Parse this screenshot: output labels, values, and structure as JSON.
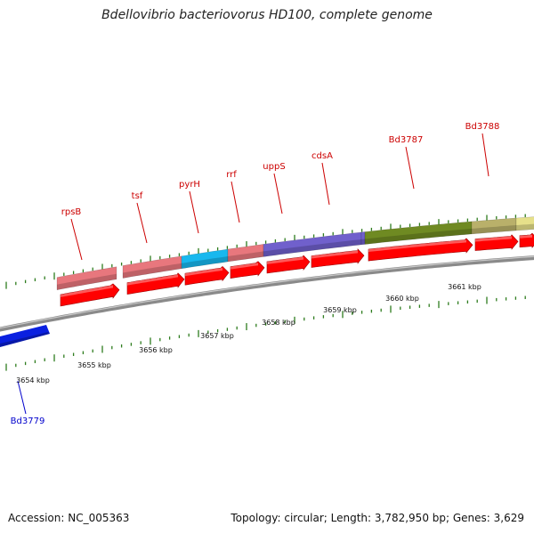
{
  "map": {
    "title": "Bdellovibrio bacteriovorus HD100, complete genome",
    "accession": "Accession: NC_005363",
    "summary": "Topology: circular; Length: 3,782,950 bp; Genes: 3,629"
  },
  "colors": {
    "backbone": "#7a7a7a",
    "cds_arrow": "#ff0000",
    "tick": "#2e7d1e",
    "label_red": "#cc0000",
    "label_blue": "#0000cc"
  },
  "genes": [
    {
      "name": "rpsB",
      "color": "#e8777d",
      "label_color": "#cc0000"
    },
    {
      "name": "tsf",
      "color": "#e8777d",
      "label_color": "#cc0000"
    },
    {
      "name": "pyrH",
      "color": "#18b8ee",
      "label_color": "#cc0000"
    },
    {
      "name": "rrf",
      "color": "#e8777d",
      "label_color": "#cc0000"
    },
    {
      "name": "uppS",
      "color": "#7060cc",
      "label_color": "#cc0000"
    },
    {
      "name": "cdsA",
      "color": "#7060cc",
      "label_color": "#cc0000"
    },
    {
      "name": "Bd3787",
      "color": "#6f8a22",
      "label_color": "#cc0000"
    },
    {
      "name": "Bd3788",
      "color": "#b9b06a",
      "label_color": "#cc0000"
    },
    {
      "name": "Bd3779",
      "color": "#0a20e0",
      "label_color": "#0000cc"
    }
  ],
  "kbp_labels": [
    "3654 kbp",
    "3655 kbp",
    "3656 kbp",
    "3657 kbp",
    "3658 kbp",
    "3659 kbp",
    "3660 kbp",
    "3661 kbp"
  ]
}
